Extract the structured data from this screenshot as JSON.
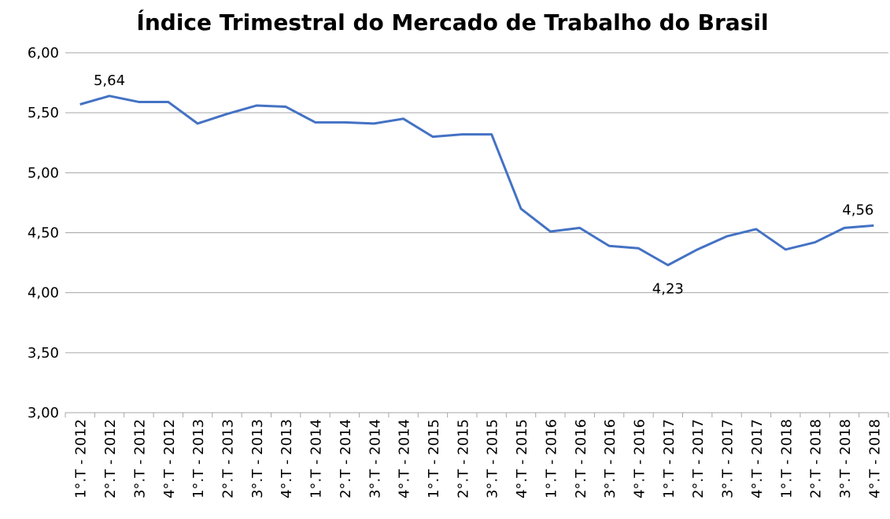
{
  "chart_data": {
    "type": "line",
    "title": "Índice Trimestral do Mercado de Trabalho do Brasil",
    "categories": [
      "1°.T - 2012",
      "2°.T - 2012",
      "3°.T - 2012",
      "4°.T - 2012",
      "1°.T - 2013",
      "2°.T - 2013",
      "3°.T - 2013",
      "4°.T - 2013",
      "1°.T - 2014",
      "2°.T - 2014",
      "3°.T - 2014",
      "4°.T - 2014",
      "1°.T - 2015",
      "2°.T - 2015",
      "3°.T - 2015",
      "4°.T - 2015",
      "1°.T - 2016",
      "2°.T - 2016",
      "3°.T - 2016",
      "4°.T - 2016",
      "1°.T - 2017",
      "2°.T - 2017",
      "3°.T - 2017",
      "4°.T - 2017",
      "1°.T - 2018",
      "2°.T - 2018",
      "3°.T - 2018",
      "4°.T - 2018"
    ],
    "values": [
      5.57,
      5.64,
      5.59,
      5.59,
      5.41,
      5.49,
      5.56,
      5.55,
      5.42,
      5.42,
      5.41,
      5.45,
      5.3,
      5.32,
      5.32,
      4.7,
      4.51,
      4.54,
      4.39,
      4.37,
      4.23,
      4.36,
      4.47,
      4.53,
      4.36,
      4.42,
      4.54,
      4.56
    ],
    "value_labels": [
      null,
      "5,64",
      null,
      null,
      null,
      null,
      null,
      null,
      null,
      null,
      null,
      null,
      null,
      null,
      null,
      null,
      null,
      null,
      null,
      null,
      "4,23",
      null,
      null,
      null,
      null,
      null,
      null,
      "4,56"
    ],
    "color": "#4472c4",
    "ylim": [
      3,
      6
    ],
    "yticks": [
      {
        "value": 3,
        "label": "3,00"
      },
      {
        "value": 3.5,
        "label": "3,50"
      },
      {
        "value": 4,
        "label": "4,00"
      },
      {
        "value": 4.5,
        "label": "4,50"
      },
      {
        "value": 5,
        "label": "5,00"
      },
      {
        "value": 5.5,
        "label": "5,50"
      },
      {
        "value": 6,
        "label": "6,00"
      }
    ],
    "grid": true
  }
}
